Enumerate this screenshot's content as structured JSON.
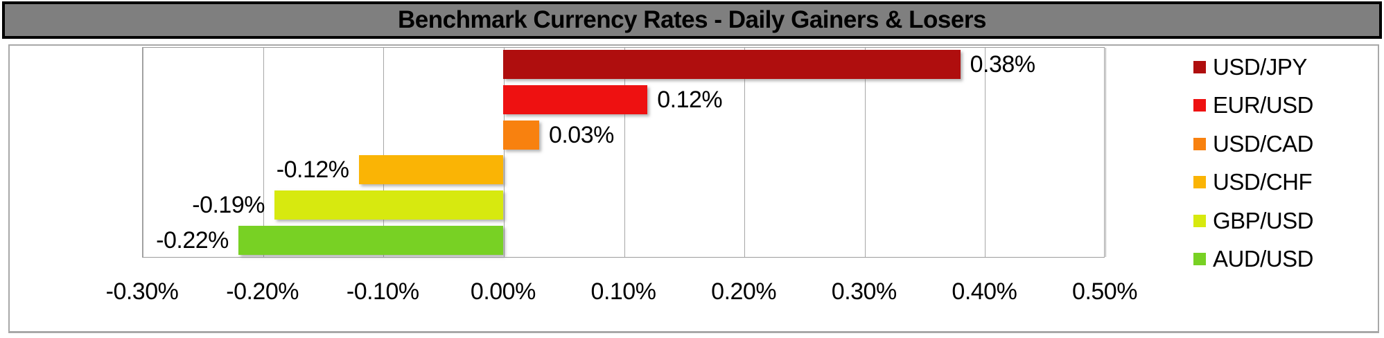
{
  "title": "Benchmark Currency Rates - Daily Gainers & Losers",
  "chart_data": {
    "type": "bar",
    "orientation": "horizontal",
    "title": "Benchmark Currency Rates - Daily Gainers & Losers",
    "categories": [
      "USD/JPY",
      "EUR/USD",
      "USD/CAD",
      "USD/CHF",
      "GBP/USD",
      "AUD/USD"
    ],
    "values": [
      0.38,
      0.12,
      0.03,
      -0.12,
      -0.19,
      -0.22
    ],
    "value_labels": [
      "0.38%",
      "0.12%",
      "0.03%",
      "-0.12%",
      "-0.19%",
      "-0.22%"
    ],
    "bar_colors": [
      "#AF0E0E",
      "#EE1111",
      "#F8810F",
      "#FAB405",
      "#D7E90F",
      "#78D124"
    ],
    "xlim": [
      -0.3,
      0.5
    ],
    "x_ticks": [
      -0.3,
      -0.2,
      -0.1,
      0.0,
      0.1,
      0.2,
      0.3,
      0.4,
      0.5
    ],
    "x_tick_labels": [
      "-0.30%",
      "-0.20%",
      "-0.10%",
      "0.00%",
      "0.10%",
      "0.20%",
      "0.30%",
      "0.40%",
      "0.50%"
    ],
    "grid": true,
    "legend_position": "right",
    "legend_entries": [
      "USD/JPY",
      "EUR/USD",
      "USD/CAD",
      "USD/CHF",
      "GBP/USD",
      "AUD/USD"
    ]
  },
  "colors": {
    "title_bar_bg": "#7F7F7F",
    "title_border": "#000000",
    "title_text": "#000000",
    "frame_border": "#A8A8A8",
    "plot_border": "#9C9C9C",
    "gridline": "#A6A6A6",
    "label_text": "#000000",
    "background": "#FFFFFF"
  }
}
